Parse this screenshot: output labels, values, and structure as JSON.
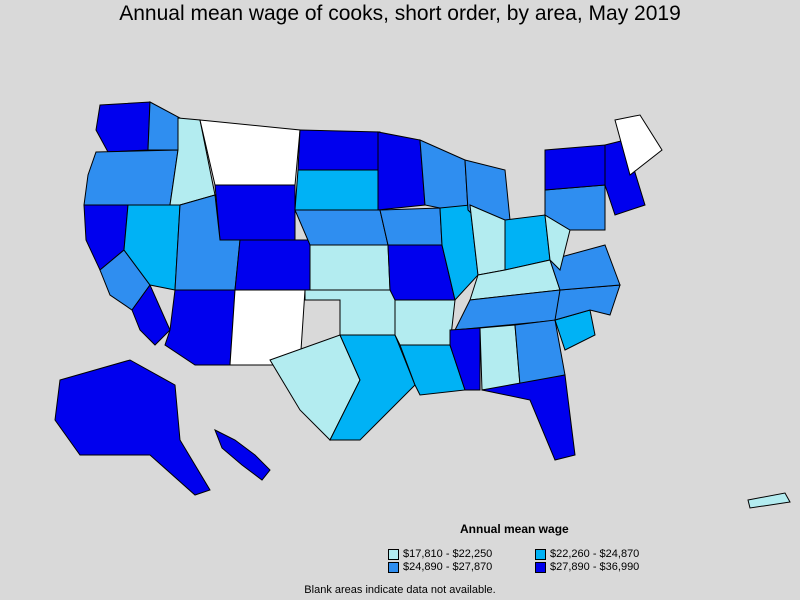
{
  "title": "Annual mean wage of cooks, short order, by area, May 2019",
  "legend": {
    "title": "Annual mean wage",
    "items": [
      {
        "label": "$17,810 - $22,250",
        "color": "#b3ecf0"
      },
      {
        "label": "$22,260 - $24,870",
        "color": "#00b2f5"
      },
      {
        "label": "$24,890 - $27,870",
        "color": "#2f8ef0"
      },
      {
        "label": "$27,890 - $36,990",
        "color": "#0000ee"
      }
    ]
  },
  "footnote": "Blank areas indicate data not available.",
  "colors": {
    "background": "#d9d9d9",
    "no_data": "#ffffff",
    "border": "#000000"
  },
  "map": {
    "regions": [
      {
        "name": "washington-west",
        "bin": 3
      },
      {
        "name": "washington-east",
        "bin": 2
      },
      {
        "name": "oregon",
        "bin": 2
      },
      {
        "name": "california-north",
        "bin": 3
      },
      {
        "name": "california-central",
        "bin": 2
      },
      {
        "name": "california-south",
        "bin": 3
      },
      {
        "name": "nevada",
        "bin": 1
      },
      {
        "name": "idaho",
        "bin": 0
      },
      {
        "name": "montana",
        "bin": -1
      },
      {
        "name": "wyoming",
        "bin": 3
      },
      {
        "name": "utah",
        "bin": 2
      },
      {
        "name": "arizona",
        "bin": 3
      },
      {
        "name": "new-mexico",
        "bin": -1
      },
      {
        "name": "colorado",
        "bin": 3
      },
      {
        "name": "north-dakota",
        "bin": 3
      },
      {
        "name": "south-dakota",
        "bin": 1
      },
      {
        "name": "nebraska",
        "bin": 2
      },
      {
        "name": "kansas",
        "bin": 0
      },
      {
        "name": "oklahoma",
        "bin": 0
      },
      {
        "name": "texas-west",
        "bin": 0
      },
      {
        "name": "texas-east",
        "bin": 1
      },
      {
        "name": "minnesota",
        "bin": 3
      },
      {
        "name": "iowa",
        "bin": 2
      },
      {
        "name": "missouri",
        "bin": 3
      },
      {
        "name": "arkansas",
        "bin": 0
      },
      {
        "name": "louisiana",
        "bin": 1
      },
      {
        "name": "wisconsin",
        "bin": 2
      },
      {
        "name": "illinois",
        "bin": 1
      },
      {
        "name": "michigan",
        "bin": 2
      },
      {
        "name": "indiana",
        "bin": 0
      },
      {
        "name": "ohio",
        "bin": 1
      },
      {
        "name": "kentucky",
        "bin": 0
      },
      {
        "name": "tennessee",
        "bin": 2
      },
      {
        "name": "mississippi",
        "bin": 3
      },
      {
        "name": "alabama",
        "bin": 0
      },
      {
        "name": "georgia",
        "bin": 2
      },
      {
        "name": "florida",
        "bin": 3
      },
      {
        "name": "south-carolina",
        "bin": 1
      },
      {
        "name": "north-carolina",
        "bin": 2
      },
      {
        "name": "virginia",
        "bin": 2
      },
      {
        "name": "west-virginia",
        "bin": 0
      },
      {
        "name": "pennsylvania",
        "bin": 2
      },
      {
        "name": "new-york",
        "bin": 3
      },
      {
        "name": "new-england",
        "bin": 3
      },
      {
        "name": "maine-north",
        "bin": -1
      },
      {
        "name": "alaska",
        "bin": 3
      },
      {
        "name": "hawaii",
        "bin": 3
      },
      {
        "name": "puerto-rico",
        "bin": 0
      }
    ]
  }
}
